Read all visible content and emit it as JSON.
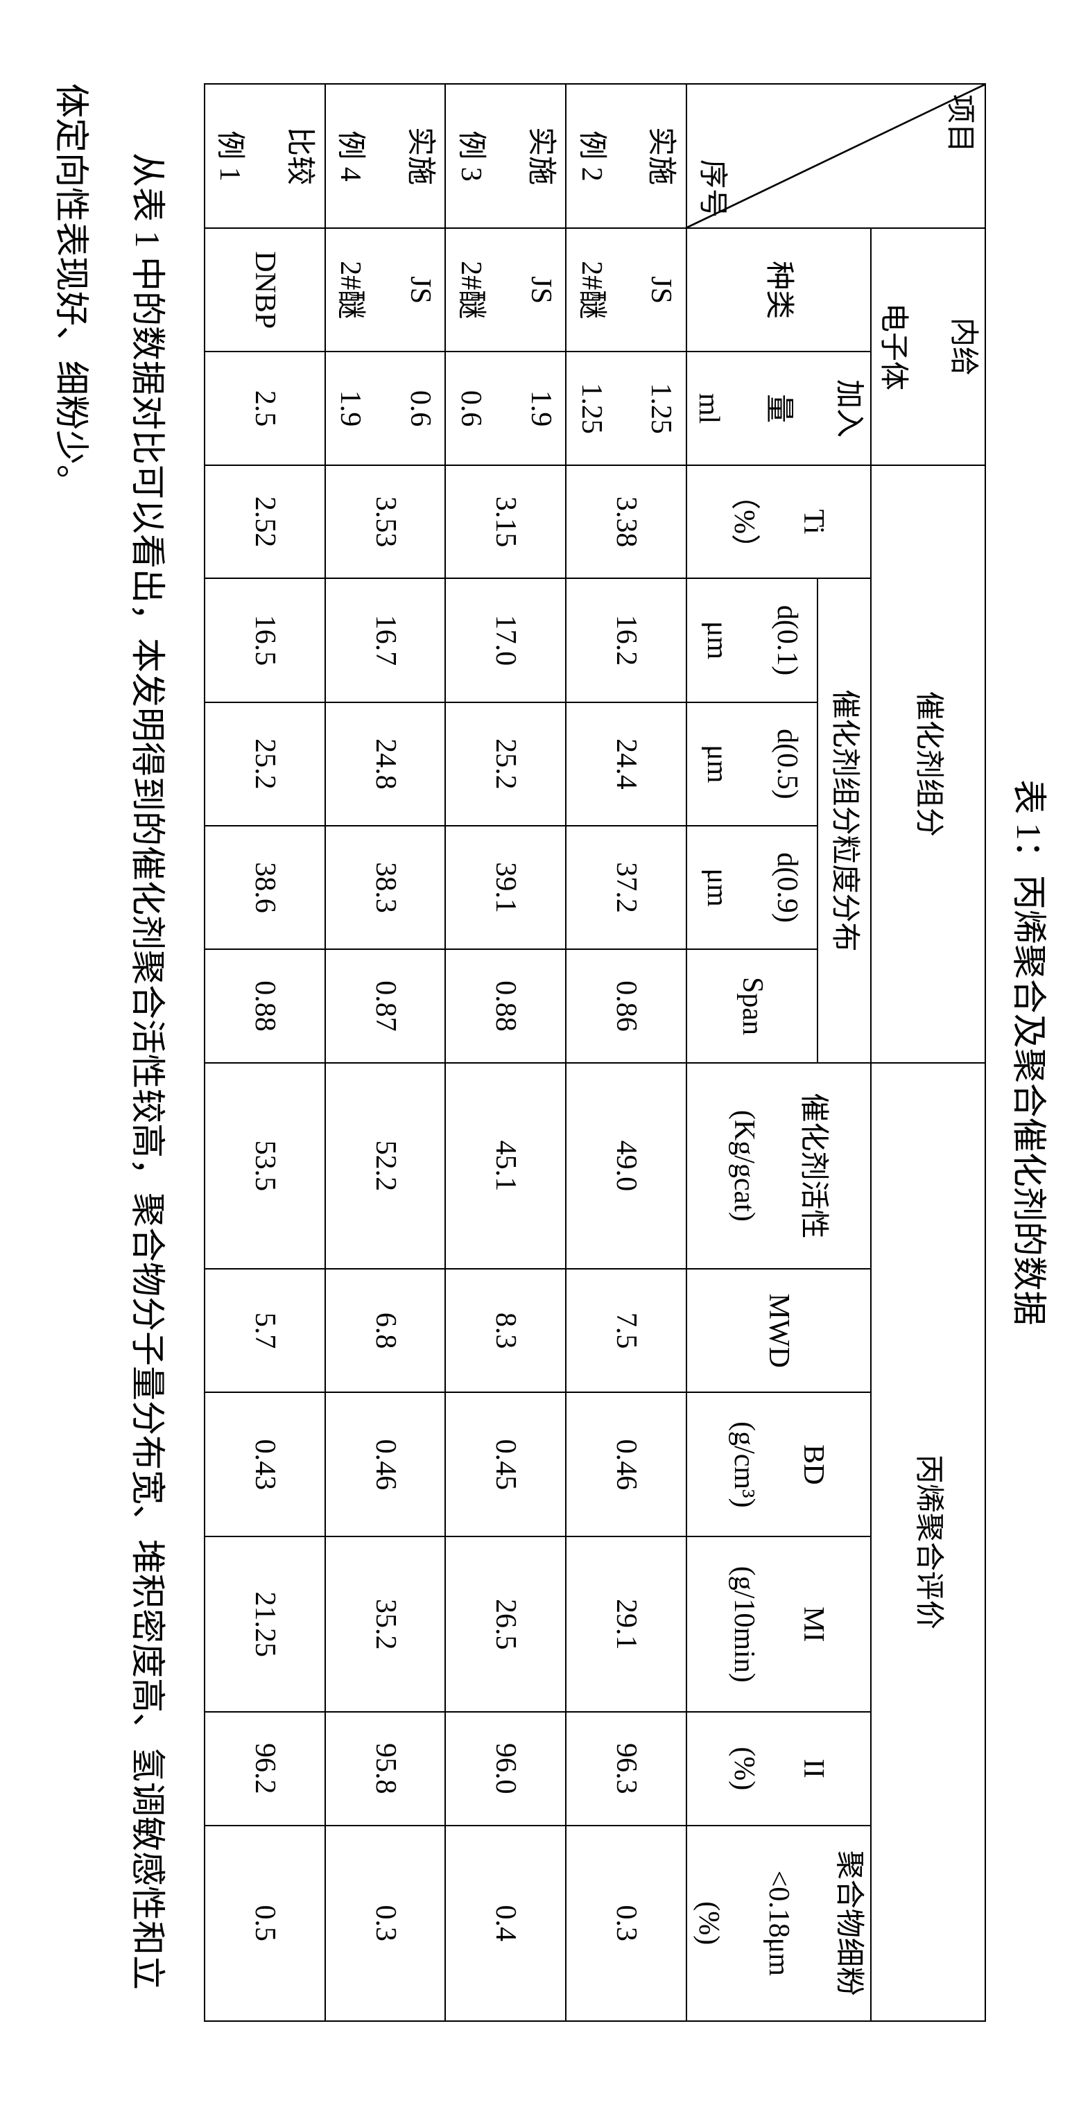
{
  "table": {
    "caption": "表 1：丙烯聚合及聚合催化剂的数据",
    "corner_top": "项目",
    "corner_bottom": "序号",
    "group_donor": "内给\n电子体",
    "group_catalyst": "催化剂组分",
    "group_poly": "丙烯聚合评价",
    "col_kind": "种类",
    "col_amount": "加入\n量\nml",
    "col_ti": "Ti\n（%）",
    "group_psd": "催化剂组分粒度分布",
    "col_d01": "d(0.1)\nμm",
    "col_d05": "d(0.5)\nμm",
    "col_d09": "d(0.9)\nμm",
    "col_span": "Span",
    "col_activity": "催化剂活性\n(Kg/gcat)",
    "col_mwd": "MWD",
    "col_bd": "BD\n(g/cm³)",
    "col_mi": "MI\n(g/10min)",
    "col_ii": "II\n(%)",
    "col_fine": "聚合物细粉\n<0.18μm\n(%)",
    "rows": [
      {
        "id": "实施\n例 2",
        "kind": "JS\n2#醚",
        "amount": "1.25\n1.25",
        "ti": "3.38",
        "d01": "16.2",
        "d05": "24.4",
        "d09": "37.2",
        "span": "0.86",
        "activity": "49.0",
        "mwd": "7.5",
        "bd": "0.46",
        "mi": "29.1",
        "ii": "96.3",
        "fine": "0.3"
      },
      {
        "id": "实施\n例 3",
        "kind": "JS\n2#醚",
        "amount": "1.9\n0.6",
        "ti": "3.15",
        "d01": "17.0",
        "d05": "25.2",
        "d09": "39.1",
        "span": "0.88",
        "activity": "45.1",
        "mwd": "8.3",
        "bd": "0.45",
        "mi": "26.5",
        "ii": "96.0",
        "fine": "0.4"
      },
      {
        "id": "实施\n例 4",
        "kind": "JS\n2#醚",
        "amount": "0.6\n1.9",
        "ti": "3.53",
        "d01": "16.7",
        "d05": "24.8",
        "d09": "38.3",
        "span": "0.87",
        "activity": "52.2",
        "mwd": "6.8",
        "bd": "0.46",
        "mi": "35.2",
        "ii": "95.8",
        "fine": "0.3"
      },
      {
        "id": "比较\n例 1",
        "kind": "DNBP",
        "amount": "2.5",
        "ti": "2.52",
        "d01": "16.5",
        "d05": "25.2",
        "d09": "38.6",
        "span": "0.88",
        "activity": "53.5",
        "mwd": "5.7",
        "bd": "0.43",
        "mi": "21.25",
        "ii": "96.2",
        "fine": "0.5"
      }
    ],
    "col_widths_pct": [
      7.0,
      6.0,
      5.5,
      5.5,
      6.0,
      6.0,
      6.0,
      5.5,
      10.0,
      6.0,
      7.0,
      8.5,
      5.5,
      9.5
    ],
    "colors": {
      "background": "#ffffff",
      "text": "#000000",
      "border": "#000000"
    },
    "font": {
      "family": "SimSun",
      "cell_size_pt": 42,
      "caption_size_pt": 50,
      "paragraph_size_pt": 50
    }
  },
  "paragraph": "从表 1 中的数据对比可以看出，本发明得到的催化剂聚合活性较高，聚合物分子量分布宽、堆积密度高、氢调敏感性和立体定向性表现好、细粉少。"
}
